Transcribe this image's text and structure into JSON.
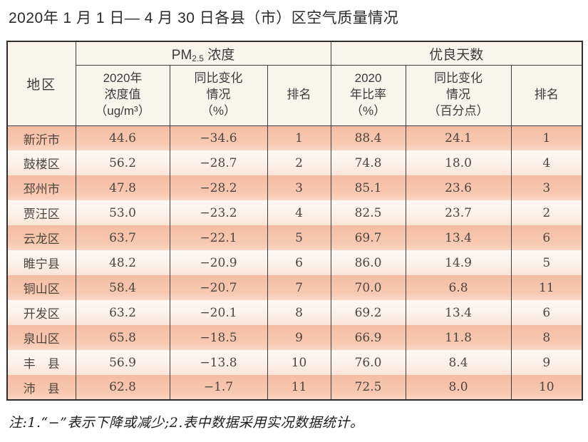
{
  "title": "2020年 1 月 1 日— 4 月 30 日各县（市）区空气质量情况",
  "table": {
    "header": {
      "region": "地区",
      "pm_group": {
        "prefix": "PM",
        "sub": "2.5",
        "suffix": " 浓度"
      },
      "good_group": "优良天数",
      "sub_headers": [
        "2020年\n浓度值\n（ug/m³）",
        "同比变化\n情况\n（%）",
        "排名",
        "2020\n年比率\n（%）",
        "同比变化\n情况\n（百分点）",
        "排名"
      ]
    },
    "rows": [
      {
        "region": "新沂市",
        "pm_value": "44.6",
        "pm_change": "−34.6",
        "pm_rank": "1",
        "good_ratio": "88.4",
        "good_change": "24.1",
        "good_rank": "1"
      },
      {
        "region": "鼓楼区",
        "pm_value": "56.2",
        "pm_change": "−28.7",
        "pm_rank": "2",
        "good_ratio": "74.8",
        "good_change": "18.0",
        "good_rank": "4"
      },
      {
        "region": "邳州市",
        "pm_value": "47.8",
        "pm_change": "−28.2",
        "pm_rank": "3",
        "good_ratio": "85.1",
        "good_change": "23.6",
        "good_rank": "3"
      },
      {
        "region": "贾汪区",
        "pm_value": "53.0",
        "pm_change": "−23.2",
        "pm_rank": "4",
        "good_ratio": "82.5",
        "good_change": "23.7",
        "good_rank": "2"
      },
      {
        "region": "云龙区",
        "pm_value": "63.7",
        "pm_change": "−22.1",
        "pm_rank": "5",
        "good_ratio": "69.7",
        "good_change": "13.4",
        "good_rank": "6"
      },
      {
        "region": "睢宁县",
        "pm_value": "48.2",
        "pm_change": "−20.9",
        "pm_rank": "6",
        "good_ratio": "86.0",
        "good_change": "14.9",
        "good_rank": "5"
      },
      {
        "region": "铜山区",
        "pm_value": "58.4",
        "pm_change": "−20.7",
        "pm_rank": "7",
        "good_ratio": "70.0",
        "good_change": "6.8",
        "good_rank": "11"
      },
      {
        "region": "开发区",
        "pm_value": "63.2",
        "pm_change": "−20.1",
        "pm_rank": "8",
        "good_ratio": "69.2",
        "good_change": "13.4",
        "good_rank": "6"
      },
      {
        "region": "泉山区",
        "pm_value": "65.8",
        "pm_change": "−18.5",
        "pm_rank": "9",
        "good_ratio": "66.9",
        "good_change": "11.8",
        "good_rank": "8"
      },
      {
        "region": "丰　县",
        "pm_value": "56.9",
        "pm_change": "−13.8",
        "pm_rank": "10",
        "good_ratio": "76.0",
        "good_change": "8.4",
        "good_rank": "9"
      },
      {
        "region": "沛　县",
        "pm_value": "62.8",
        "pm_change": "−1.7",
        "pm_rank": "11",
        "good_ratio": "72.5",
        "good_change": "8.0",
        "good_rank": "10"
      }
    ]
  },
  "footnote": "注:1.“−”表示下降或减少;2.表中数据采用实况数据统计。",
  "colors": {
    "row_pink": "#f6c3aa",
    "row_cream": "#fcf1e9",
    "header_bg": "#fbf4eb",
    "border": "#3d3d3d",
    "text": "#4e453f"
  }
}
